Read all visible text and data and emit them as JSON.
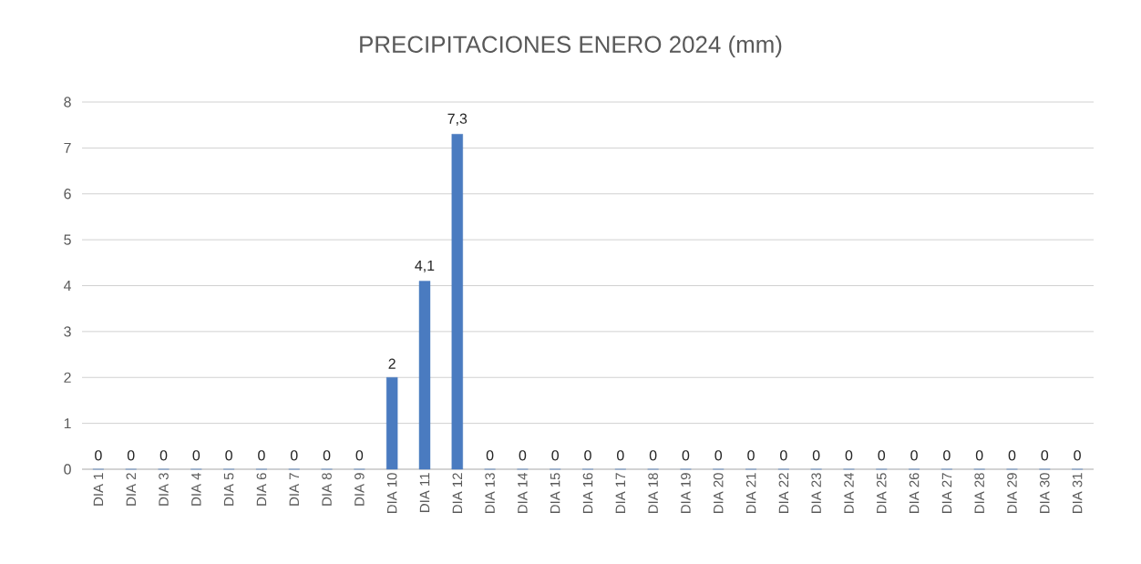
{
  "chart_data": {
    "type": "bar",
    "title": "PRECIPITACIONES ENERO 2024 (mm)",
    "categories": [
      "DIA 1",
      "DIA 2",
      "DIA 3",
      "DIA 4",
      "DIA 5",
      "DIA 6",
      "DIA 7",
      "DIA 8",
      "DIA 9",
      "DIA 10",
      "DIA 11",
      "DIA 12",
      "DIA 13",
      "DIA 14",
      "DIA 15",
      "DIA 16",
      "DIA 17",
      "DIA 18",
      "DIA 19",
      "DIA 20",
      "DIA 21",
      "DIA 22",
      "DIA 23",
      "DIA 24",
      "DIA 25",
      "DIA 26",
      "DIA 27",
      "DIA 28",
      "DIA 29",
      "DIA 30",
      "DIA 31"
    ],
    "values": [
      0,
      0,
      0,
      0,
      0,
      0,
      0,
      0,
      0,
      2,
      4.1,
      7.3,
      0,
      0,
      0,
      0,
      0,
      0,
      0,
      0,
      0,
      0,
      0,
      0,
      0,
      0,
      0,
      0,
      0,
      0,
      0
    ],
    "value_labels": [
      "0",
      "0",
      "0",
      "0",
      "0",
      "0",
      "0",
      "0",
      "0",
      "2",
      "4,1",
      "7,3",
      "0",
      "0",
      "0",
      "0",
      "0",
      "0",
      "0",
      "0",
      "0",
      "0",
      "0",
      "0",
      "0",
      "0",
      "0",
      "0",
      "0",
      "0",
      "0"
    ],
    "color": "#4a7bc0",
    "ylim": [
      0,
      8
    ],
    "yticks": [
      0,
      1,
      2,
      3,
      4,
      5,
      6,
      7,
      8
    ],
    "grid": "y"
  }
}
